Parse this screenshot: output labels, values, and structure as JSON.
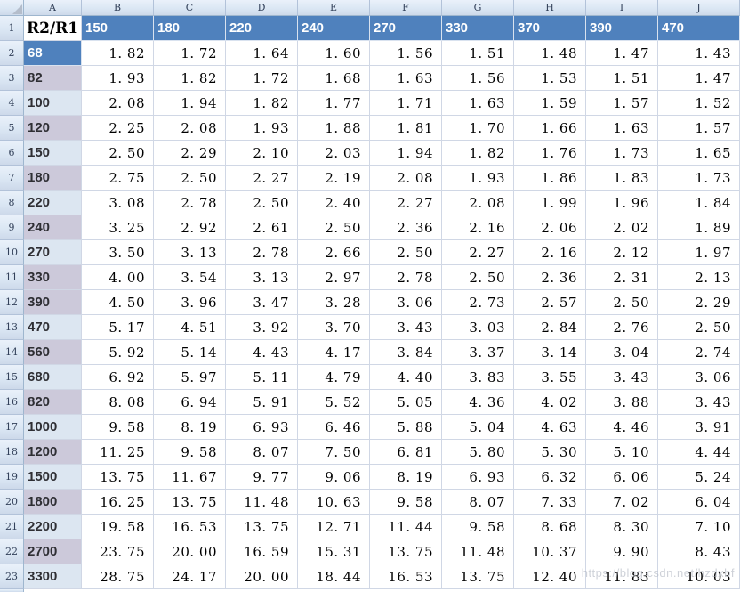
{
  "watermark": "https://blog.csdn.net/hzdxbf",
  "colors": {
    "header_blue_fill": "#4f81bd",
    "band_dark": "#ccc9da",
    "band_light": "#dce6f1",
    "gridline": "#d0d7e5",
    "frame_border": "#9eb6ce"
  },
  "column_letters": [
    "A",
    "B",
    "C",
    "D",
    "E",
    "F",
    "G",
    "H",
    "I",
    "J"
  ],
  "row_numbers": [
    "1",
    "2",
    "3",
    "4",
    "5",
    "6",
    "7",
    "8",
    "9",
    "10",
    "11",
    "12",
    "13",
    "14",
    "15",
    "16",
    "17",
    "18",
    "19",
    "20",
    "21",
    "22",
    "23"
  ],
  "table": {
    "corner_header": "R2/R1",
    "col_headers": [
      "150",
      "180",
      "220",
      "240",
      "270",
      "330",
      "370",
      "390",
      "470"
    ],
    "rows": [
      {
        "label": "68",
        "shade": "blue",
        "values": [
          "1. 82",
          "1. 72",
          "1. 64",
          "1. 60",
          "1. 56",
          "1. 51",
          "1. 48",
          "1. 47",
          "1. 43"
        ]
      },
      {
        "label": "82",
        "shade": "dark",
        "values": [
          "1. 93",
          "1. 82",
          "1. 72",
          "1. 68",
          "1. 63",
          "1. 56",
          "1. 53",
          "1. 51",
          "1. 47"
        ]
      },
      {
        "label": "100",
        "shade": "light",
        "values": [
          "2. 08",
          "1. 94",
          "1. 82",
          "1. 77",
          "1. 71",
          "1. 63",
          "1. 59",
          "1. 57",
          "1. 52"
        ]
      },
      {
        "label": "120",
        "shade": "dark",
        "values": [
          "2. 25",
          "2. 08",
          "1. 93",
          "1. 88",
          "1. 81",
          "1. 70",
          "1. 66",
          "1. 63",
          "1. 57"
        ]
      },
      {
        "label": "150",
        "shade": "light",
        "values": [
          "2. 50",
          "2. 29",
          "2. 10",
          "2. 03",
          "1. 94",
          "1. 82",
          "1. 76",
          "1. 73",
          "1. 65"
        ]
      },
      {
        "label": "180",
        "shade": "dark",
        "values": [
          "2. 75",
          "2. 50",
          "2. 27",
          "2. 19",
          "2. 08",
          "1. 93",
          "1. 86",
          "1. 83",
          "1. 73"
        ]
      },
      {
        "label": "220",
        "shade": "light",
        "values": [
          "3. 08",
          "2. 78",
          "2. 50",
          "2. 40",
          "2. 27",
          "2. 08",
          "1. 99",
          "1. 96",
          "1. 84"
        ]
      },
      {
        "label": "240",
        "shade": "dark",
        "values": [
          "3. 25",
          "2. 92",
          "2. 61",
          "2. 50",
          "2. 36",
          "2. 16",
          "2. 06",
          "2. 02",
          "1. 89"
        ]
      },
      {
        "label": "270",
        "shade": "light",
        "values": [
          "3. 50",
          "3. 13",
          "2. 78",
          "2. 66",
          "2. 50",
          "2. 27",
          "2. 16",
          "2. 12",
          "1. 97"
        ]
      },
      {
        "label": "330",
        "shade": "dark",
        "values": [
          "4. 00",
          "3. 54",
          "3. 13",
          "2. 97",
          "2. 78",
          "2. 50",
          "2. 36",
          "2. 31",
          "2. 13"
        ]
      },
      {
        "label": "390",
        "shade": "dark",
        "values": [
          "4. 50",
          "3. 96",
          "3. 47",
          "3. 28",
          "3. 06",
          "2. 73",
          "2. 57",
          "2. 50",
          "2. 29"
        ]
      },
      {
        "label": "470",
        "shade": "light",
        "values": [
          "5. 17",
          "4. 51",
          "3. 92",
          "3. 70",
          "3. 43",
          "3. 03",
          "2. 84",
          "2. 76",
          "2. 50"
        ]
      },
      {
        "label": "560",
        "shade": "dark",
        "values": [
          "5. 92",
          "5. 14",
          "4. 43",
          "4. 17",
          "3. 84",
          "3. 37",
          "3. 14",
          "3. 04",
          "2. 74"
        ]
      },
      {
        "label": "680",
        "shade": "light",
        "values": [
          "6. 92",
          "5. 97",
          "5. 11",
          "4. 79",
          "4. 40",
          "3. 83",
          "3. 55",
          "3. 43",
          "3. 06"
        ]
      },
      {
        "label": "820",
        "shade": "dark",
        "values": [
          "8. 08",
          "6. 94",
          "5. 91",
          "5. 52",
          "5. 05",
          "4. 36",
          "4. 02",
          "3. 88",
          "3. 43"
        ]
      },
      {
        "label": "1000",
        "shade": "light",
        "values": [
          "9. 58",
          "8. 19",
          "6. 93",
          "6. 46",
          "5. 88",
          "5. 04",
          "4. 63",
          "4. 46",
          "3. 91"
        ]
      },
      {
        "label": "1200",
        "shade": "dark",
        "values": [
          "11. 25",
          "9. 58",
          "8. 07",
          "7. 50",
          "6. 81",
          "5. 80",
          "5. 30",
          "5. 10",
          "4. 44"
        ]
      },
      {
        "label": "1500",
        "shade": "light",
        "values": [
          "13. 75",
          "11. 67",
          "9. 77",
          "9. 06",
          "8. 19",
          "6. 93",
          "6. 32",
          "6. 06",
          "5. 24"
        ]
      },
      {
        "label": "1800",
        "shade": "dark",
        "values": [
          "16. 25",
          "13. 75",
          "11. 48",
          "10. 63",
          "9. 58",
          "8. 07",
          "7. 33",
          "7. 02",
          "6. 04"
        ]
      },
      {
        "label": "2200",
        "shade": "light",
        "values": [
          "19. 58",
          "16. 53",
          "13. 75",
          "12. 71",
          "11. 44",
          "9. 58",
          "8. 68",
          "8. 30",
          "7. 10"
        ]
      },
      {
        "label": "2700",
        "shade": "dark",
        "values": [
          "23. 75",
          "20. 00",
          "16. 59",
          "15. 31",
          "13. 75",
          "11. 48",
          "10. 37",
          "9. 90",
          "8. 43"
        ]
      },
      {
        "label": "3300",
        "shade": "light",
        "values": [
          "28. 75",
          "24. 17",
          "20. 00",
          "18. 44",
          "16. 53",
          "13. 75",
          "12. 40",
          "11. 83",
          "10. 03"
        ]
      }
    ]
  }
}
